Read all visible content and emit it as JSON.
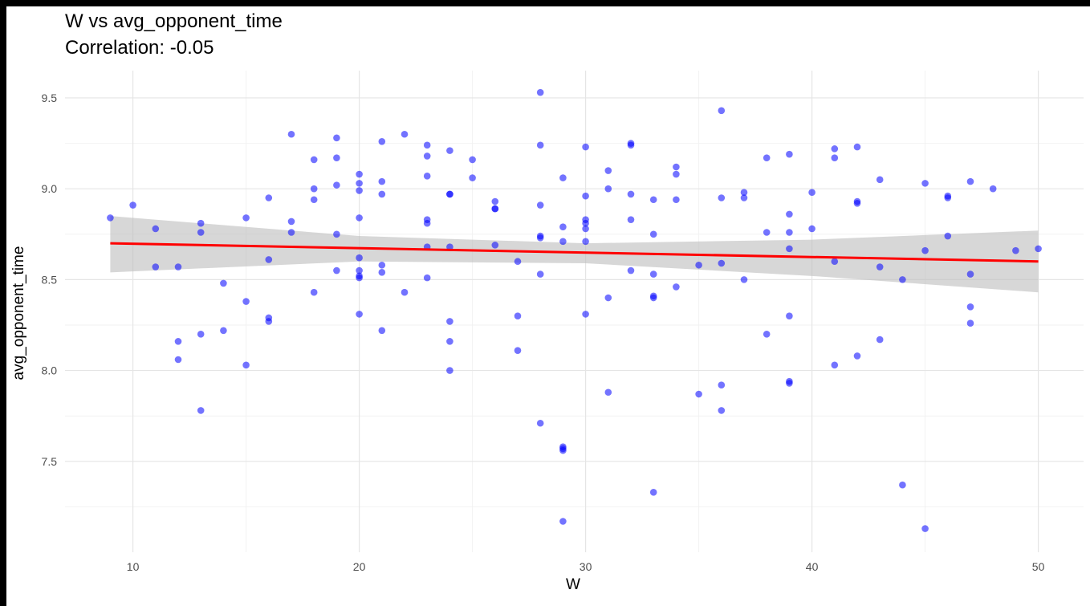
{
  "chart_data": {
    "type": "scatter",
    "title": "W vs avg_opponent_time",
    "subtitle": "Correlation: -0.05",
    "xlabel": "W",
    "ylabel": "avg_opponent_time",
    "xlim": [
      7,
      52
    ],
    "ylim": [
      7.0,
      9.65
    ],
    "x_ticks": [
      10,
      20,
      30,
      40,
      50
    ],
    "y_ticks": [
      7.5,
      8.0,
      8.5,
      9.0,
      9.5
    ],
    "grid": true,
    "legend": "none",
    "colors": {
      "points": "#0000ff",
      "trend": "#ff0000",
      "band": "#bebebe"
    },
    "points": [
      {
        "x": 9,
        "y": 8.84
      },
      {
        "x": 10,
        "y": 8.91
      },
      {
        "x": 11,
        "y": 8.78
      },
      {
        "x": 11,
        "y": 8.57
      },
      {
        "x": 12,
        "y": 8.57
      },
      {
        "x": 12,
        "y": 8.16
      },
      {
        "x": 12,
        "y": 8.06
      },
      {
        "x": 13,
        "y": 8.81
      },
      {
        "x": 13,
        "y": 8.76
      },
      {
        "x": 13,
        "y": 8.2
      },
      {
        "x": 13,
        "y": 7.78
      },
      {
        "x": 14,
        "y": 8.48
      },
      {
        "x": 14,
        "y": 8.22
      },
      {
        "x": 15,
        "y": 8.84
      },
      {
        "x": 15,
        "y": 8.38
      },
      {
        "x": 15,
        "y": 8.03
      },
      {
        "x": 16,
        "y": 8.95
      },
      {
        "x": 16,
        "y": 8.61
      },
      {
        "x": 16,
        "y": 8.29
      },
      {
        "x": 16,
        "y": 8.27
      },
      {
        "x": 17,
        "y": 9.3
      },
      {
        "x": 17,
        "y": 8.82
      },
      {
        "x": 17,
        "y": 8.76
      },
      {
        "x": 18,
        "y": 9.16
      },
      {
        "x": 18,
        "y": 9.0
      },
      {
        "x": 18,
        "y": 8.94
      },
      {
        "x": 18,
        "y": 8.43
      },
      {
        "x": 19,
        "y": 9.28
      },
      {
        "x": 19,
        "y": 9.17
      },
      {
        "x": 19,
        "y": 9.02
      },
      {
        "x": 19,
        "y": 8.75
      },
      {
        "x": 19,
        "y": 8.55
      },
      {
        "x": 20,
        "y": 9.08
      },
      {
        "x": 20,
        "y": 9.03
      },
      {
        "x": 20,
        "y": 8.99
      },
      {
        "x": 20,
        "y": 8.84
      },
      {
        "x": 20,
        "y": 8.62
      },
      {
        "x": 20,
        "y": 8.55
      },
      {
        "x": 20,
        "y": 8.52
      },
      {
        "x": 20,
        "y": 8.51
      },
      {
        "x": 20,
        "y": 8.31
      },
      {
        "x": 21,
        "y": 9.26
      },
      {
        "x": 21,
        "y": 9.04
      },
      {
        "x": 21,
        "y": 8.97
      },
      {
        "x": 21,
        "y": 8.58
      },
      {
        "x": 21,
        "y": 8.54
      },
      {
        "x": 21,
        "y": 8.22
      },
      {
        "x": 22,
        "y": 9.3
      },
      {
        "x": 22,
        "y": 8.43
      },
      {
        "x": 23,
        "y": 9.24
      },
      {
        "x": 23,
        "y": 9.18
      },
      {
        "x": 23,
        "y": 9.07
      },
      {
        "x": 23,
        "y": 8.83
      },
      {
        "x": 23,
        "y": 8.81
      },
      {
        "x": 23,
        "y": 8.68
      },
      {
        "x": 23,
        "y": 8.51
      },
      {
        "x": 24,
        "y": 9.21
      },
      {
        "x": 24,
        "y": 8.97
      },
      {
        "x": 24,
        "y": 8.97
      },
      {
        "x": 24,
        "y": 8.68
      },
      {
        "x": 24,
        "y": 8.27
      },
      {
        "x": 24,
        "y": 8.16
      },
      {
        "x": 24,
        "y": 8.0
      },
      {
        "x": 25,
        "y": 9.16
      },
      {
        "x": 25,
        "y": 9.06
      },
      {
        "x": 26,
        "y": 8.93
      },
      {
        "x": 26,
        "y": 8.89
      },
      {
        "x": 26,
        "y": 8.89
      },
      {
        "x": 26,
        "y": 8.69
      },
      {
        "x": 27,
        "y": 8.6
      },
      {
        "x": 27,
        "y": 8.3
      },
      {
        "x": 27,
        "y": 8.11
      },
      {
        "x": 28,
        "y": 9.53
      },
      {
        "x": 28,
        "y": 9.24
      },
      {
        "x": 28,
        "y": 8.91
      },
      {
        "x": 28,
        "y": 8.74
      },
      {
        "x": 28,
        "y": 8.73
      },
      {
        "x": 28,
        "y": 8.53
      },
      {
        "x": 28,
        "y": 7.71
      },
      {
        "x": 29,
        "y": 9.06
      },
      {
        "x": 29,
        "y": 8.79
      },
      {
        "x": 29,
        "y": 8.71
      },
      {
        "x": 29,
        "y": 7.58
      },
      {
        "x": 29,
        "y": 7.57
      },
      {
        "x": 29,
        "y": 7.56
      },
      {
        "x": 29,
        "y": 7.17
      },
      {
        "x": 30,
        "y": 9.23
      },
      {
        "x": 30,
        "y": 8.96
      },
      {
        "x": 30,
        "y": 8.83
      },
      {
        "x": 30,
        "y": 8.81
      },
      {
        "x": 30,
        "y": 8.78
      },
      {
        "x": 30,
        "y": 8.71
      },
      {
        "x": 30,
        "y": 8.31
      },
      {
        "x": 31,
        "y": 9.1
      },
      {
        "x": 31,
        "y": 9.0
      },
      {
        "x": 31,
        "y": 8.4
      },
      {
        "x": 31,
        "y": 7.88
      },
      {
        "x": 32,
        "y": 9.25
      },
      {
        "x": 32,
        "y": 9.24
      },
      {
        "x": 32,
        "y": 8.97
      },
      {
        "x": 32,
        "y": 8.83
      },
      {
        "x": 32,
        "y": 8.55
      },
      {
        "x": 33,
        "y": 8.94
      },
      {
        "x": 33,
        "y": 8.75
      },
      {
        "x": 33,
        "y": 8.53
      },
      {
        "x": 33,
        "y": 8.41
      },
      {
        "x": 33,
        "y": 8.4
      },
      {
        "x": 33,
        "y": 7.33
      },
      {
        "x": 34,
        "y": 9.12
      },
      {
        "x": 34,
        "y": 9.08
      },
      {
        "x": 34,
        "y": 8.94
      },
      {
        "x": 34,
        "y": 8.46
      },
      {
        "x": 35,
        "y": 8.58
      },
      {
        "x": 35,
        "y": 7.87
      },
      {
        "x": 36,
        "y": 9.43
      },
      {
        "x": 36,
        "y": 8.95
      },
      {
        "x": 36,
        "y": 8.59
      },
      {
        "x": 36,
        "y": 7.92
      },
      {
        "x": 36,
        "y": 7.78
      },
      {
        "x": 37,
        "y": 8.98
      },
      {
        "x": 37,
        "y": 8.95
      },
      {
        "x": 37,
        "y": 8.5
      },
      {
        "x": 38,
        "y": 9.17
      },
      {
        "x": 38,
        "y": 8.76
      },
      {
        "x": 38,
        "y": 8.2
      },
      {
        "x": 39,
        "y": 9.19
      },
      {
        "x": 39,
        "y": 8.86
      },
      {
        "x": 39,
        "y": 8.76
      },
      {
        "x": 39,
        "y": 8.67
      },
      {
        "x": 39,
        "y": 8.3
      },
      {
        "x": 39,
        "y": 7.94
      },
      {
        "x": 39,
        "y": 7.93
      },
      {
        "x": 40,
        "y": 8.98
      },
      {
        "x": 40,
        "y": 8.78
      },
      {
        "x": 41,
        "y": 9.22
      },
      {
        "x": 41,
        "y": 9.17
      },
      {
        "x": 41,
        "y": 8.6
      },
      {
        "x": 41,
        "y": 8.03
      },
      {
        "x": 42,
        "y": 9.23
      },
      {
        "x": 42,
        "y": 8.93
      },
      {
        "x": 42,
        "y": 8.92
      },
      {
        "x": 42,
        "y": 8.08
      },
      {
        "x": 43,
        "y": 9.05
      },
      {
        "x": 43,
        "y": 8.57
      },
      {
        "x": 43,
        "y": 8.17
      },
      {
        "x": 44,
        "y": 8.5
      },
      {
        "x": 44,
        "y": 7.37
      },
      {
        "x": 45,
        "y": 9.03
      },
      {
        "x": 45,
        "y": 8.66
      },
      {
        "x": 45,
        "y": 7.13
      },
      {
        "x": 46,
        "y": 8.96
      },
      {
        "x": 46,
        "y": 8.95
      },
      {
        "x": 46,
        "y": 8.74
      },
      {
        "x": 47,
        "y": 9.04
      },
      {
        "x": 47,
        "y": 8.53
      },
      {
        "x": 47,
        "y": 8.35
      },
      {
        "x": 47,
        "y": 8.26
      },
      {
        "x": 48,
        "y": 9.0
      },
      {
        "x": 49,
        "y": 8.66
      },
      {
        "x": 50,
        "y": 8.67
      }
    ],
    "trend_line": {
      "x": [
        9,
        50
      ],
      "y": [
        8.7,
        8.6
      ]
    },
    "confidence_band": {
      "x": [
        9,
        20,
        30,
        40,
        50
      ],
      "upper": [
        8.85,
        8.74,
        8.7,
        8.72,
        8.77
      ],
      "lower": [
        8.54,
        8.6,
        8.59,
        8.52,
        8.43
      ]
    }
  }
}
